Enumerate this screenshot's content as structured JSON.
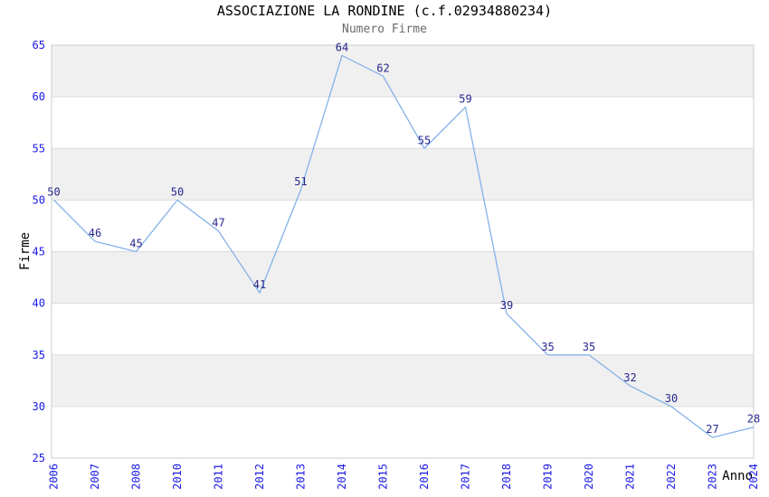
{
  "chart_data": {
    "type": "line",
    "title": "ASSOCIAZIONE LA RONDINE (c.f.02934880234)",
    "subtitle": "Numero Firme",
    "xlabel": "Anno",
    "ylabel": "Firme",
    "categories": [
      "2006",
      "2007",
      "2008",
      "2010",
      "2011",
      "2012",
      "2013",
      "2014",
      "2015",
      "2016",
      "2017",
      "2018",
      "2019",
      "2020",
      "2021",
      "2022",
      "2023",
      "2024"
    ],
    "values": [
      50,
      46,
      45,
      50,
      47,
      41,
      51,
      64,
      62,
      55,
      59,
      39,
      35,
      35,
      32,
      30,
      27,
      28
    ],
    "ylim": [
      25,
      65
    ],
    "ytick_step": 5,
    "yticks": [
      25,
      30,
      35,
      40,
      45,
      50,
      55,
      60,
      65
    ],
    "grid": "horizontal alternating gray bands with light gridlines",
    "legend_position": "none",
    "data_labels_shown": true,
    "x_tick_rotation": -90,
    "colors": {
      "line": "#84B2E8",
      "tick_label": "#1A1AE8",
      "data_label": "#26268E",
      "band": "#F0F0F0",
      "gridline": "#DCDCDC",
      "plot_border": "#CCCCCC",
      "title": "#000000",
      "subtitle": "#6B6B6B",
      "axis_title": "#000000",
      "background": "#FFFFFF"
    }
  }
}
